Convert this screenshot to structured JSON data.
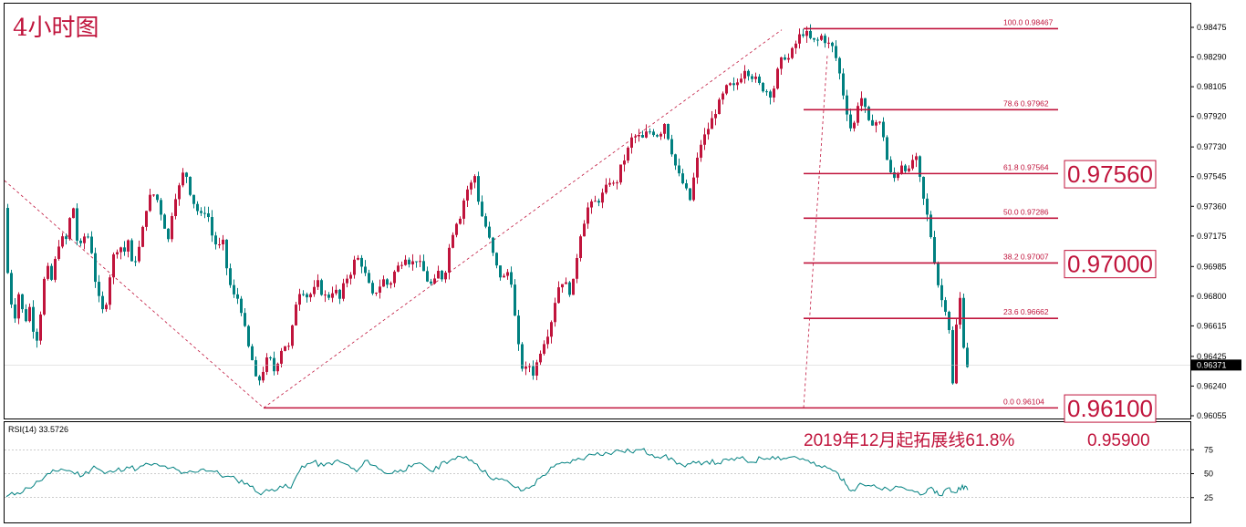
{
  "chart_data": [
    {
      "type": "candlestick",
      "title": "4小时图",
      "ylim": [
        0.96055,
        0.9856
      ],
      "y_ticks": [
        "0.98475",
        "0.98290",
        "0.98105",
        "0.97920",
        "0.97730",
        "0.97545",
        "0.97360",
        "0.97175",
        "0.96985",
        "0.96800",
        "0.96615",
        "0.96425",
        "0.96240",
        "0.96055"
      ],
      "current_price": "0.96371",
      "price_path_points": [
        [
          0,
          0.9735
        ],
        [
          3,
          0.97
        ],
        [
          7,
          0.9678
        ],
        [
          12,
          0.9668
        ],
        [
          17,
          0.9685
        ],
        [
          22,
          0.9662
        ],
        [
          28,
          0.9673
        ],
        [
          35,
          0.965
        ],
        [
          40,
          0.967
        ],
        [
          46,
          0.97
        ],
        [
          52,
          0.969
        ],
        [
          57,
          0.9705
        ],
        [
          62,
          0.9718
        ],
        [
          67,
          0.9712
        ],
        [
          72,
          0.9728
        ],
        [
          76,
          0.9735
        ],
        [
          80,
          0.9715
        ],
        [
          85,
          0.971
        ],
        [
          90,
          0.9722
        ],
        [
          96,
          0.9708
        ],
        [
          100,
          0.969
        ],
        [
          105,
          0.9675
        ],
        [
          110,
          0.9668
        ],
        [
          115,
          0.969
        ],
        [
          120,
          0.9705
        ],
        [
          126,
          0.9712
        ],
        [
          132,
          0.9708
        ],
        [
          136,
          0.9715
        ],
        [
          140,
          0.97
        ],
        [
          146,
          0.9705
        ],
        [
          150,
          0.9715
        ],
        [
          156,
          0.9735
        ],
        [
          162,
          0.9745
        ],
        [
          168,
          0.974
        ],
        [
          174,
          0.9728
        ],
        [
          180,
          0.9715
        ],
        [
          186,
          0.974
        ],
        [
          192,
          0.9748
        ],
        [
          198,
          0.976
        ],
        [
          204,
          0.9745
        ],
        [
          210,
          0.9735
        ],
        [
          216,
          0.973
        ],
        [
          222,
          0.9735
        ],
        [
          228,
          0.9718
        ],
        [
          234,
          0.971
        ],
        [
          240,
          0.9713
        ],
        [
          246,
          0.969
        ],
        [
          252,
          0.968
        ],
        [
          258,
          0.9678
        ],
        [
          263,
          0.9662
        ],
        [
          268,
          0.9648
        ],
        [
          272,
          0.964
        ],
        [
          277,
          0.9625
        ],
        [
          282,
          0.963
        ],
        [
          287,
          0.964
        ],
        [
          292,
          0.964
        ],
        [
          297,
          0.9632
        ],
        [
          302,
          0.9645
        ],
        [
          307,
          0.965
        ],
        [
          312,
          0.9648
        ],
        [
          316,
          0.966
        ],
        [
          321,
          0.968
        ],
        [
          326,
          0.9685
        ],
        [
          332,
          0.968
        ],
        [
          338,
          0.9682
        ],
        [
          344,
          0.9688
        ],
        [
          350,
          0.968
        ],
        [
          356,
          0.968
        ],
        [
          362,
          0.9685
        ],
        [
          368,
          0.9678
        ],
        [
          374,
          0.969
        ],
        [
          380,
          0.9695
        ],
        [
          386,
          0.9705
        ],
        [
          392,
          0.97
        ],
        [
          398,
          0.969
        ],
        [
          404,
          0.968
        ],
        [
          410,
          0.9685
        ],
        [
          416,
          0.969
        ],
        [
          422,
          0.9686
        ],
        [
          428,
          0.9695
        ],
        [
          434,
          0.97
        ],
        [
          440,
          0.9705
        ],
        [
          446,
          0.97
        ],
        [
          452,
          0.9703
        ],
        [
          458,
          0.9698
        ],
        [
          464,
          0.969
        ],
        [
          470,
          0.9686
        ],
        [
          476,
          0.9695
        ],
        [
          482,
          0.969
        ],
        [
          488,
          0.971
        ],
        [
          494,
          0.9725
        ],
        [
          500,
          0.973
        ],
        [
          506,
          0.9745
        ],
        [
          512,
          0.975
        ],
        [
          516,
          0.9755
        ],
        [
          520,
          0.974
        ],
        [
          524,
          0.973
        ],
        [
          530,
          0.972
        ],
        [
          535,
          0.9708
        ],
        [
          540,
          0.9698
        ],
        [
          546,
          0.969
        ],
        [
          552,
          0.9695
        ],
        [
          557,
          0.9688
        ],
        [
          561,
          0.966
        ],
        [
          566,
          0.964
        ],
        [
          570,
          0.9632
        ],
        [
          575,
          0.9638
        ],
        [
          580,
          0.9632
        ],
        [
          585,
          0.964
        ],
        [
          590,
          0.965
        ],
        [
          595,
          0.9655
        ],
        [
          600,
          0.9665
        ],
        [
          605,
          0.968
        ],
        [
          610,
          0.969
        ],
        [
          615,
          0.9688
        ],
        [
          620,
          0.9683
        ],
        [
          625,
          0.969
        ],
        [
          630,
          0.9715
        ],
        [
          635,
          0.9725
        ],
        [
          640,
          0.9735
        ],
        [
          646,
          0.9738
        ],
        [
          652,
          0.974
        ],
        [
          658,
          0.9745
        ],
        [
          664,
          0.9752
        ],
        [
          670,
          0.9748
        ],
        [
          676,
          0.976
        ],
        [
          682,
          0.9768
        ],
        [
          688,
          0.9778
        ],
        [
          694,
          0.978
        ],
        [
          700,
          0.9778
        ],
        [
          706,
          0.9783
        ],
        [
          712,
          0.9782
        ],
        [
          718,
          0.978
        ],
        [
          724,
          0.9788
        ],
        [
          730,
          0.9775
        ],
        [
          735,
          0.9763
        ],
        [
          740,
          0.9755
        ],
        [
          746,
          0.9748
        ],
        [
          752,
          0.974
        ],
        [
          758,
          0.976
        ],
        [
          764,
          0.9775
        ],
        [
          770,
          0.9782
        ],
        [
          776,
          0.979
        ],
        [
          782,
          0.9798
        ],
        [
          788,
          0.9805
        ],
        [
          794,
          0.9812
        ],
        [
          800,
          0.981
        ],
        [
          806,
          0.9815
        ],
        [
          812,
          0.9822
        ],
        [
          818,
          0.9818
        ],
        [
          824,
          0.9815
        ],
        [
          830,
          0.981
        ],
        [
          836,
          0.9808
        ],
        [
          842,
          0.9805
        ],
        [
          848,
          0.982
        ],
        [
          854,
          0.983
        ],
        [
          860,
          0.9828
        ],
        [
          866,
          0.9835
        ],
        [
          872,
          0.9842
        ],
        [
          878,
          0.9845
        ],
        [
          884,
          0.984
        ],
        [
          890,
          0.9838
        ],
        [
          896,
          0.9842
        ],
        [
          902,
          0.9838
        ],
        [
          908,
          0.9835
        ],
        [
          914,
          0.9825
        ],
        [
          918,
          0.9812
        ],
        [
          922,
          0.98
        ],
        [
          926,
          0.979
        ],
        [
          930,
          0.978
        ],
        [
          934,
          0.9795
        ],
        [
          938,
          0.9805
        ],
        [
          942,
          0.9802
        ],
        [
          946,
          0.979
        ],
        [
          950,
          0.9785
        ],
        [
          954,
          0.9792
        ],
        [
          958,
          0.9785
        ],
        [
          962,
          0.979
        ],
        [
          966,
          0.977
        ],
        [
          970,
          0.976
        ],
        [
          974,
          0.9752
        ],
        [
          978,
          0.9755
        ],
        [
          982,
          0.976
        ],
        [
          986,
          0.9765
        ],
        [
          990,
          0.9755
        ],
        [
          994,
          0.976
        ],
        [
          998,
          0.977
        ],
        [
          1002,
          0.976
        ],
        [
          1006,
          0.9745
        ],
        [
          1010,
          0.9735
        ],
        [
          1014,
          0.9725
        ],
        [
          1018,
          0.971
        ],
        [
          1022,
          0.9695
        ],
        [
          1026,
          0.968
        ],
        [
          1030,
          0.9675
        ],
        [
          1034,
          0.967
        ],
        [
          1038,
          0.965
        ],
        [
          1040,
          0.9625
        ],
        [
          1043,
          0.9655
        ],
        [
          1046,
          0.9675
        ],
        [
          1049,
          0.968
        ],
        [
          1052,
          0.965
        ],
        [
          1055,
          0.9637
        ]
      ]
    },
    {
      "type": "line",
      "title": "RSI(14) 33.5726",
      "ylim": [
        0,
        100
      ],
      "y_ticks": [
        "75",
        "50",
        "25"
      ],
      "levels": [
        75,
        50,
        25
      ],
      "x": [
        0,
        12,
        24,
        36,
        48,
        60,
        72,
        84,
        96,
        108,
        120,
        132,
        144,
        156,
        168,
        180,
        192,
        204,
        216,
        228,
        240,
        252,
        264,
        276,
        288,
        300,
        312,
        324,
        336,
        348,
        360,
        372,
        384,
        396,
        408,
        420,
        432,
        444,
        456,
        468,
        480,
        492,
        504,
        516,
        528,
        540,
        552,
        564,
        576,
        588,
        600,
        612,
        624,
        636,
        648,
        660,
        672,
        684,
        696,
        708,
        720,
        732,
        744,
        756,
        768,
        780,
        792,
        804,
        816,
        828,
        840,
        852,
        864,
        876,
        888,
        900,
        912,
        920,
        928,
        936,
        948,
        960,
        972,
        984,
        996,
        1008,
        1016,
        1024,
        1032,
        1040,
        1048,
        1054
      ],
      "values": [
        26,
        30,
        35,
        42,
        50,
        55,
        52,
        48,
        58,
        50,
        53,
        57,
        55,
        60,
        58,
        56,
        50,
        52,
        55,
        52,
        47,
        44,
        40,
        30,
        32,
        37,
        35,
        58,
        62,
        58,
        63,
        60,
        52,
        64,
        55,
        50,
        54,
        57,
        60,
        52,
        63,
        65,
        68,
        60,
        48,
        44,
        40,
        32,
        37,
        48,
        57,
        61,
        64,
        68,
        72,
        71,
        74,
        73,
        75,
        70,
        68,
        64,
        57,
        61,
        63,
        61,
        64,
        66,
        62,
        66,
        68,
        66,
        68,
        64,
        58,
        56,
        50,
        39,
        33,
        40,
        37,
        33,
        34,
        35,
        31,
        30,
        34,
        27,
        35,
        30,
        38,
        33
      ]
    }
  ],
  "labels": {
    "title": "4小时图",
    "current_price": "0.96371",
    "rsi_label": "RSI(14) 33.5726",
    "annotation": "2019年12月起拓展线61.8%",
    "annotation_value": "0.95900"
  },
  "fib_levels": [
    {
      "ratio": "100.0",
      "price": "0.98467",
      "value": 0.98467
    },
    {
      "ratio": "78.6",
      "price": "0.97962",
      "value": 0.97962
    },
    {
      "ratio": "61.8",
      "price": "0.97564",
      "value": 0.97564
    },
    {
      "ratio": "50.0",
      "price": "0.97286",
      "value": 0.97286
    },
    {
      "ratio": "38.2",
      "price": "0.97007",
      "value": 0.97007
    },
    {
      "ratio": "23.6",
      "price": "0.96662",
      "value": 0.96662
    },
    {
      "ratio": "0.0",
      "price": "0.96104",
      "value": 0.96104
    }
  ],
  "price_boxes": [
    {
      "text": "0.97560",
      "value": 0.9756
    },
    {
      "text": "0.97000",
      "value": 0.97
    },
    {
      "text": "0.96100",
      "value": 0.961
    }
  ],
  "colors": {
    "bull": "#c0143c",
    "bear": "#008080",
    "accent": "#c0143c",
    "rsi": "#008080"
  }
}
